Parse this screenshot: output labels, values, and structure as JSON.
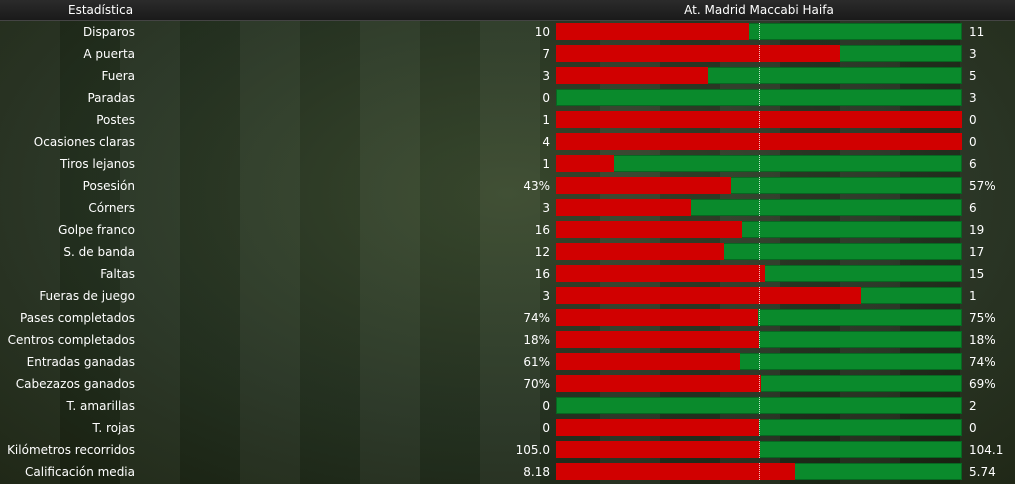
{
  "header": {
    "stat_label": "Estadística",
    "teams_label": "At. Madrid  Maccabi Haifa"
  },
  "colors": {
    "home": "#d10000",
    "away": "#0a8a2c"
  },
  "rows": [
    {
      "label": "Disparos",
      "left": "10",
      "right": "11",
      "home_share": 0.476
    },
    {
      "label": "A puerta",
      "left": "7",
      "right": "3",
      "home_share": 0.7
    },
    {
      "label": "Fuera",
      "left": "3",
      "right": "5",
      "home_share": 0.375
    },
    {
      "label": "Paradas",
      "left": "0",
      "right": "3",
      "home_share": 0.0
    },
    {
      "label": "Postes",
      "left": "1",
      "right": "0",
      "home_share": 1.0
    },
    {
      "label": "Ocasiones claras",
      "left": "4",
      "right": "0",
      "home_share": 1.0
    },
    {
      "label": "Tiros lejanos",
      "left": "1",
      "right": "6",
      "home_share": 0.143
    },
    {
      "label": "Posesión",
      "left": "43%",
      "right": "57%",
      "home_share": 0.43
    },
    {
      "label": "Córners",
      "left": "3",
      "right": "6",
      "home_share": 0.333
    },
    {
      "label": "Golpe franco",
      "left": "16",
      "right": "19",
      "home_share": 0.457
    },
    {
      "label": "S. de banda",
      "left": "12",
      "right": "17",
      "home_share": 0.414
    },
    {
      "label": "Faltas",
      "left": "16",
      "right": "15",
      "home_share": 0.516
    },
    {
      "label": "Fueras de juego",
      "left": "3",
      "right": "1",
      "home_share": 0.75
    },
    {
      "label": "Pases completados",
      "left": "74%",
      "right": "75%",
      "home_share": 0.497
    },
    {
      "label": "Centros completados",
      "left": "18%",
      "right": "18%",
      "home_share": 0.5
    },
    {
      "label": "Entradas ganadas",
      "left": "61%",
      "right": "74%",
      "home_share": 0.452
    },
    {
      "label": "Cabezazos ganados",
      "left": "70%",
      "right": "69%",
      "home_share": 0.504
    },
    {
      "label": "T. amarillas",
      "left": "0",
      "right": "2",
      "home_share": 0.0
    },
    {
      "label": "T. rojas",
      "left": "0",
      "right": "0",
      "home_share": 0.5
    },
    {
      "label": "Kilómetros recorridos",
      "left": "105.0",
      "right": "104.1",
      "home_share": 0.502
    },
    {
      "label": "Calificación media",
      "left": "8.18",
      "right": "5.74",
      "home_share": 0.588
    }
  ]
}
